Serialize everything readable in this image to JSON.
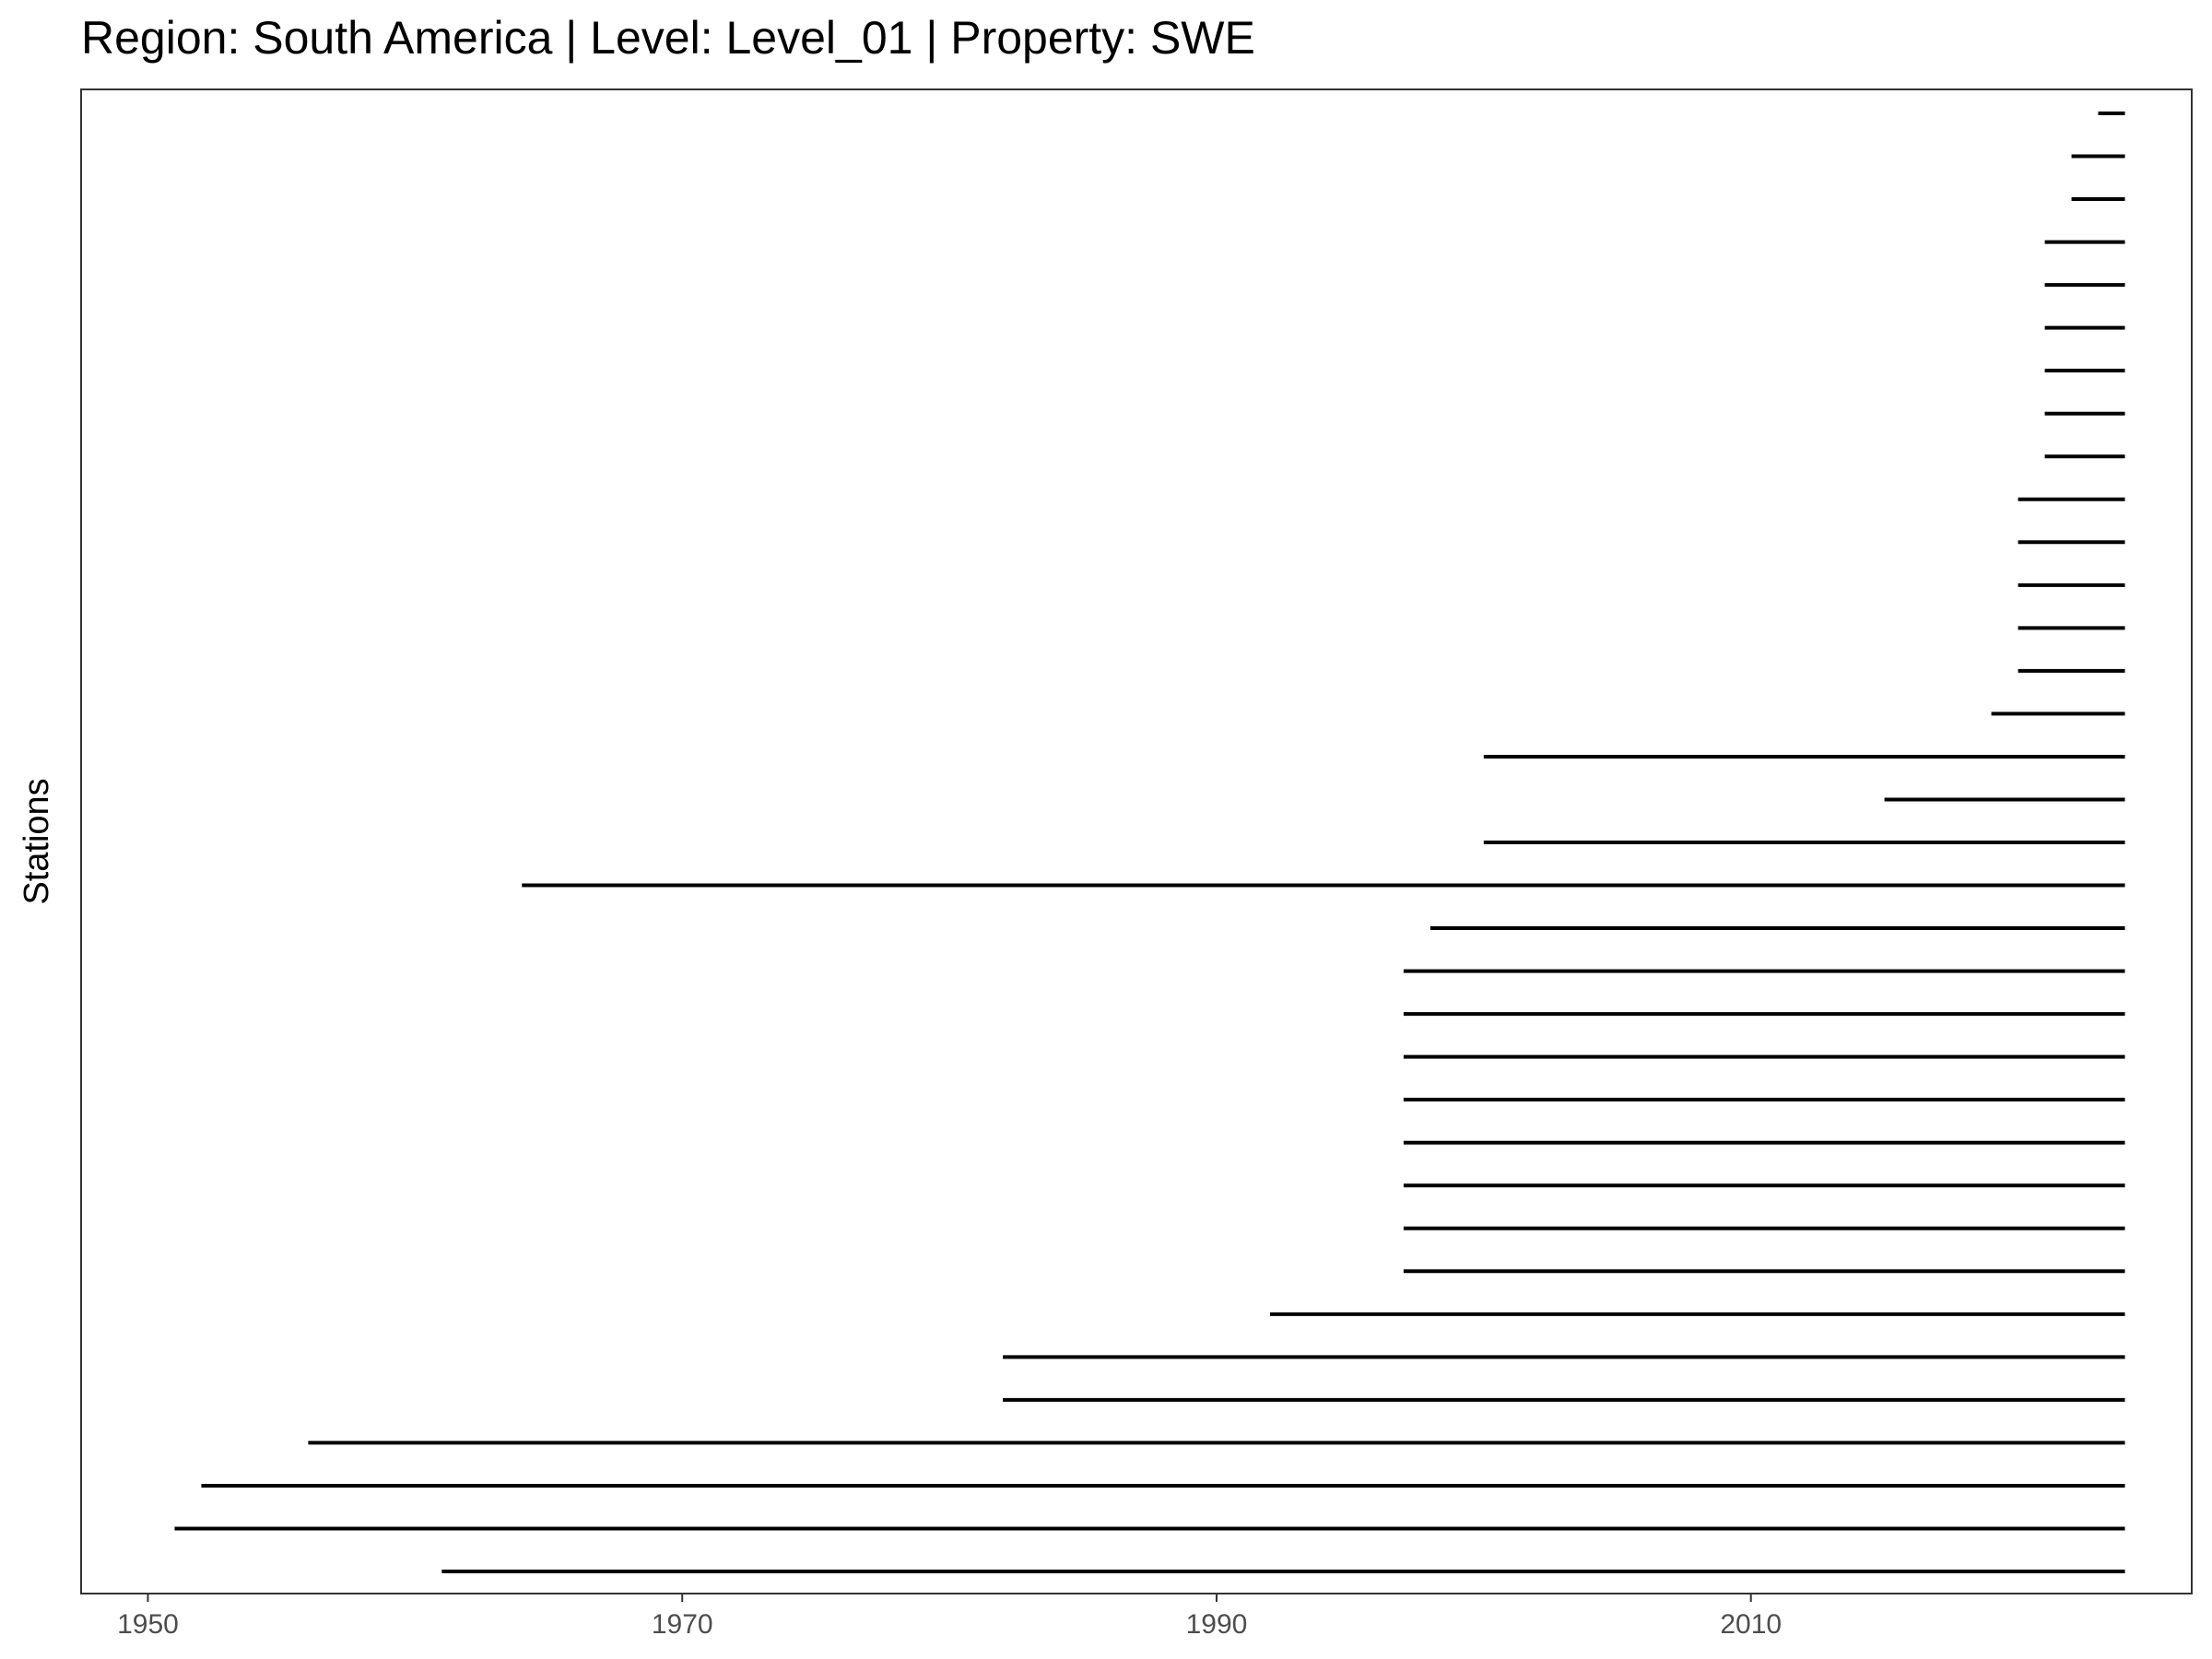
{
  "chart_data": {
    "type": "timeline",
    "title": "Region: South America | Level: Level_01 | Property: SWE",
    "xlabel": "",
    "ylabel": "Stations",
    "xlim": [
      1947.5,
      2026.5
    ],
    "xticks": [
      1950,
      1970,
      1990,
      2010
    ],
    "xtick_labels": [
      "1950",
      "1970",
      "1990",
      "2010"
    ],
    "grid": false,
    "line_color": "#000000",
    "segments": [
      {
        "start": 1961.0,
        "end": 2024.0
      },
      {
        "start": 1951.0,
        "end": 2024.0
      },
      {
        "start": 1952.0,
        "end": 2024.0
      },
      {
        "start": 1956.0,
        "end": 2024.0
      },
      {
        "start": 1982.0,
        "end": 2024.0
      },
      {
        "start": 1982.0,
        "end": 2024.0
      },
      {
        "start": 1992.0,
        "end": 2024.0
      },
      {
        "start": 1997.0,
        "end": 2024.0
      },
      {
        "start": 1997.0,
        "end": 2024.0
      },
      {
        "start": 1997.0,
        "end": 2024.0
      },
      {
        "start": 1997.0,
        "end": 2024.0
      },
      {
        "start": 1997.0,
        "end": 2024.0
      },
      {
        "start": 1997.0,
        "end": 2024.0
      },
      {
        "start": 1997.0,
        "end": 2024.0
      },
      {
        "start": 1997.0,
        "end": 2024.0
      },
      {
        "start": 1998.0,
        "end": 2024.0
      },
      {
        "start": 1964.0,
        "end": 2024.0
      },
      {
        "start": 2000.0,
        "end": 2024.0
      },
      {
        "start": 2015.0,
        "end": 2024.0
      },
      {
        "start": 2000.0,
        "end": 2024.0
      },
      {
        "start": 2019.0,
        "end": 2024.0
      },
      {
        "start": 2020.0,
        "end": 2024.0
      },
      {
        "start": 2020.0,
        "end": 2024.0
      },
      {
        "start": 2020.0,
        "end": 2024.0
      },
      {
        "start": 2020.0,
        "end": 2024.0
      },
      {
        "start": 2020.0,
        "end": 2024.0
      },
      {
        "start": 2021.0,
        "end": 2024.0
      },
      {
        "start": 2021.0,
        "end": 2024.0
      },
      {
        "start": 2021.0,
        "end": 2024.0
      },
      {
        "start": 2021.0,
        "end": 2024.0
      },
      {
        "start": 2021.0,
        "end": 2024.0
      },
      {
        "start": 2021.0,
        "end": 2024.0
      },
      {
        "start": 2022.0,
        "end": 2024.0
      },
      {
        "start": 2022.0,
        "end": 2024.0
      },
      {
        "start": 2023.0,
        "end": 2024.0
      }
    ]
  }
}
